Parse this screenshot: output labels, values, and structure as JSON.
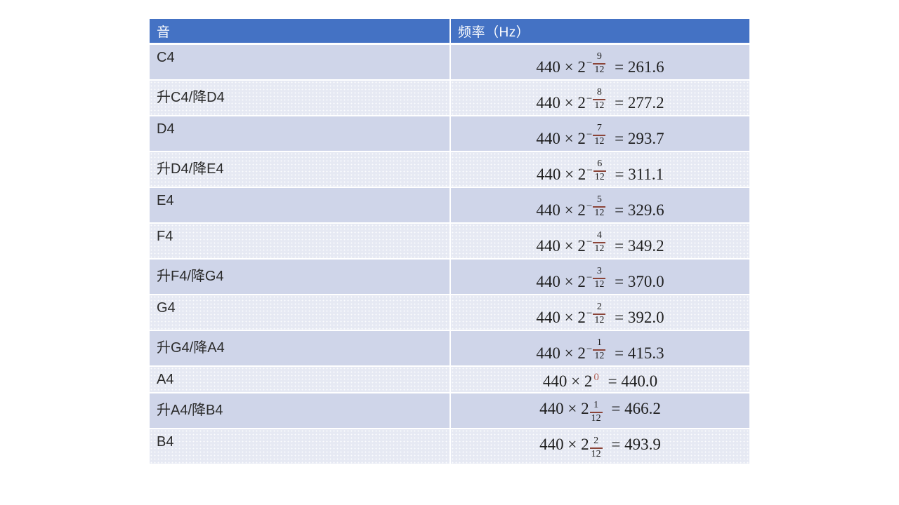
{
  "table": {
    "headers": [
      {
        "label": "音"
      },
      {
        "label": "频率（Hz）"
      }
    ],
    "rows": [
      {
        "note": "C4",
        "formula": {
          "base": "440 × 2",
          "exp": {
            "sign": "−",
            "num": "9",
            "den": "12"
          },
          "rhs": "= 261.6"
        }
      },
      {
        "note": "升C4/降D4",
        "formula": {
          "base": "440 × 2",
          "exp": {
            "sign": "−",
            "num": "8",
            "den": "12"
          },
          "rhs": "= 277.2"
        }
      },
      {
        "note": "D4",
        "formula": {
          "base": "440 × 2",
          "exp": {
            "sign": "−",
            "num": "7",
            "den": "12"
          },
          "rhs": "= 293.7"
        }
      },
      {
        "note": "升D4/降E4",
        "formula": {
          "base": "440 × 2",
          "exp": {
            "sign": "−",
            "num": "6",
            "den": "12"
          },
          "rhs": "= 311.1"
        }
      },
      {
        "note": "E4",
        "formula": {
          "base": "440 × 2",
          "exp": {
            "sign": "−",
            "num": "5",
            "den": "12"
          },
          "rhs": "= 329.6"
        }
      },
      {
        "note": "F4",
        "formula": {
          "base": "440 × 2",
          "exp": {
            "sign": "−",
            "num": "4",
            "den": "12"
          },
          "rhs": "= 349.2"
        }
      },
      {
        "note": "升F4/降G4",
        "formula": {
          "base": "440 × 2",
          "exp": {
            "sign": "−",
            "num": "3",
            "den": "12"
          },
          "rhs": "= 370.0"
        }
      },
      {
        "note": "G4",
        "formula": {
          "base": "440 × 2",
          "exp": {
            "sign": "−",
            "num": "2",
            "den": "12"
          },
          "rhs": "= 392.0"
        }
      },
      {
        "note": "升G4/降A4",
        "formula": {
          "base": "440 × 2",
          "exp": {
            "sign": "−",
            "num": "1",
            "den": "12"
          },
          "rhs": "= 415.3"
        }
      },
      {
        "note": "A4",
        "formula": {
          "base": "440 × 2",
          "exp": {
            "plain": "0"
          },
          "rhs": "= 440.0"
        }
      },
      {
        "note": "升A4/降B4",
        "formula": {
          "base": "440 × 2",
          "exp": {
            "num": "1",
            "den": "12"
          },
          "rhs": "= 466.2"
        }
      },
      {
        "note": "B4",
        "formula": {
          "base": "440 × 2",
          "exp": {
            "num": "2",
            "den": "12"
          },
          "rhs": "= 493.9"
        }
      }
    ],
    "colors": {
      "header_bg": "#4472c4",
      "header_text": "#ffffff",
      "band_dark": "#cfd5e9",
      "band_light": "#e6e9f3",
      "fraction_bar": "#8b4438",
      "exp_zero": "#b4655a"
    }
  }
}
